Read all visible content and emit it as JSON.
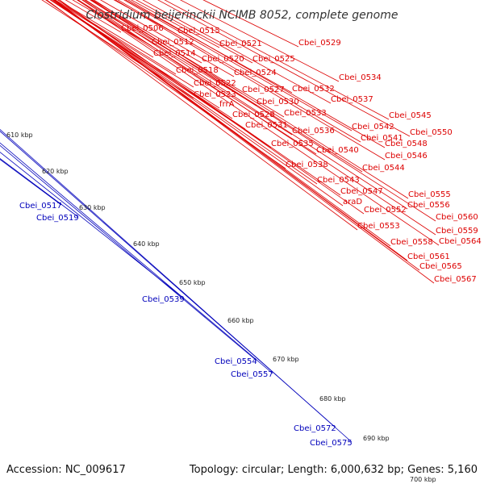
{
  "title": "Clostridium beijerinckii NCIMB 8052, complete genome",
  "footer": {
    "accession": "Accession: NC_009617",
    "summary": "Topology: circular; Length: 6,000,632 bp; Genes: 5,160"
  },
  "colors": {
    "forward_label": "#dd0000",
    "reverse_label": "#0000bb",
    "backbone": "#9a9a9a",
    "ticks": "#229922"
  },
  "kbp_ticks": [
    "610 kbp",
    "620 kbp",
    "630 kbp",
    "640 kbp",
    "650 kbp",
    "660 kbp",
    "670 kbp",
    "680 kbp",
    "690 kbp",
    "700 kbp"
  ],
  "forward_labels": [
    "Cbei_0506",
    "Cbei_0515",
    "Cbei_0512",
    "Cbei_0514",
    "Cbei_0521",
    "Cbei_0529",
    "Cbei_0520",
    "Cbei_0525",
    "Cbei_0518",
    "Cbei_0524",
    "Cbei_0522",
    "Cbei_0527",
    "Cbei_0532",
    "Cbei_0534",
    "Cbei_0523",
    "frrA",
    "Cbei_0530",
    "Cbei_0537",
    "Cbei_0528",
    "Cbei_0533",
    "Cbei_0545",
    "Cbei_0531",
    "Cbei_0542",
    "Cbei_0536",
    "Cbei_0550",
    "Cbei_0541",
    "Cbei_0535",
    "Cbei_0548",
    "Cbei_0540",
    "Cbei_0546",
    "Cbei_0538",
    "Cbei_0544",
    "Cbei_0543",
    "Cbei_0547",
    "Cbei_0555",
    "araD",
    "Cbei_0556",
    "Cbei_0552",
    "Cbei_0560",
    "Cbei_0553",
    "Cbei_0559",
    "Cbei_0558",
    "Cbei_0564",
    "Cbei_0561",
    "Cbei_0565",
    "Cbei_0567"
  ],
  "reverse_labels": [
    "Cbei_0517",
    "Cbei_0519",
    "Cbei_0539",
    "Cbei_0554",
    "Cbei_0557",
    "Cbei_0572",
    "Cbei_0575"
  ]
}
